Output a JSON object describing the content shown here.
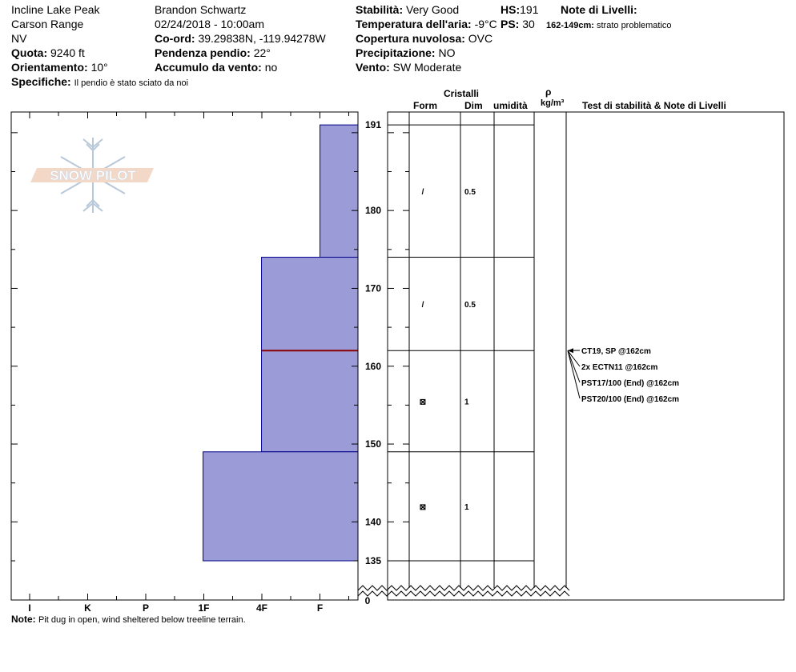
{
  "header": {
    "location": "Incline Lake Peak",
    "range": "Carson Range",
    "state": "NV",
    "elevation_label": "Quota:",
    "elevation_value": "9240 ft",
    "aspect_label": "Orientamento:",
    "aspect_value": "10°",
    "details_label": "Specifiche:",
    "details_value": "Il pendio è stato sciato da noi",
    "observer": "Brandon Schwartz",
    "datetime": "02/24/2018 - 10:00am",
    "coord_label": "Co-ord:",
    "coord_value": "39.29838N, -119.94278W",
    "slope_label": "Pendenza pendio:",
    "slope_value": "22°",
    "windload_label": "Accumulo da vento:",
    "windload_value": "no",
    "stability_label": "Stabilità:",
    "stability_value": "Very Good",
    "airtemp_label": "Temperatura dell'aria:",
    "airtemp_value": "-9°C",
    "sky_label": "Copertura nuvolosa:",
    "sky_value": "OVC",
    "precip_label": "Precipitazione:",
    "precip_value": "NO",
    "wind_label": "Vento:",
    "wind_value": "SW Moderate",
    "hs_label": "HS:",
    "hs_value": "191",
    "ps_label": "PS:",
    "ps_value": "30",
    "layer_notes_label": "Note di Livelli:",
    "layer_notes_range": "162-149cm:",
    "layer_notes_text": "strato problematico"
  },
  "table_headers": {
    "crystals": "Cristalli",
    "form": "Form",
    "size": "Dim",
    "moisture": "umidità",
    "rho": "ρ",
    "density_unit": "kg/m³",
    "stability_notes": "Test di stabilità & Note di Livelli"
  },
  "logo_text": "SNOW PILOT",
  "footer": {
    "note_label": "Note:",
    "note_text": "Pit dug in open, wind sheltered below treeline terrain."
  },
  "colors": {
    "layer_fill": "#9b9bd8",
    "layer_stroke": "#00008b",
    "weak_layer": "#8b0000"
  },
  "chart_data": {
    "type": "bar",
    "x_categories": [
      "I",
      "K",
      "P",
      "1F",
      "4F",
      "F"
    ],
    "y_ticks": [
      135,
      140,
      150,
      160,
      170,
      180,
      191
    ],
    "y_zero_label": "0",
    "ylim": [
      130,
      193
    ],
    "layers": [
      {
        "top": 191,
        "bottom": 174,
        "hardness_index": 0.65,
        "form": "/",
        "size": "0.5"
      },
      {
        "top": 174,
        "bottom": 162,
        "hardness_index": 1.65,
        "form": "/",
        "size": "0.5"
      },
      {
        "top": 162,
        "bottom": 149,
        "hardness_index": 1.65,
        "form": "⊠",
        "size": "1"
      },
      {
        "top": 149,
        "bottom": 135,
        "hardness_index": 2.65,
        "form": "⊠",
        "size": "1"
      }
    ],
    "weak_layer_cm": 162,
    "stability_tests": [
      "CT19, SP @162cm",
      "2x ECTN11 @162cm",
      "PST17/100 (End) @162cm",
      "PST20/100 (End) @162cm"
    ]
  }
}
